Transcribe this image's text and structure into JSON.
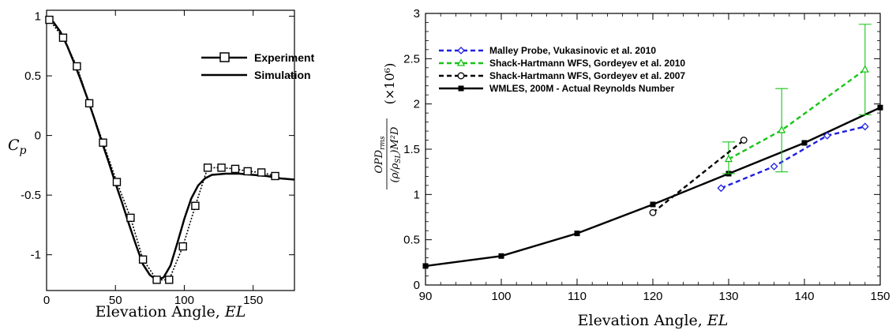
{
  "chart_data": [
    {
      "type": "line",
      "xlabel_text": "Elevation Angle, ",
      "xlabel_var": "EL",
      "ylabel_main": "C",
      "ylabel_sub": "p",
      "xlim": [
        0,
        180
      ],
      "ylim": [
        -1.3,
        1.05
      ],
      "xticks": [
        0,
        50,
        100,
        150
      ],
      "yticks": [
        1,
        0.5,
        0,
        -0.5,
        -1
      ],
      "grid": false,
      "legend_position": "top-right",
      "series": [
        {
          "name": "Experiment",
          "style": "dotted-square",
          "x": [
            2,
            12,
            22,
            31,
            41,
            51,
            61,
            70,
            80,
            89,
            99,
            108,
            117,
            127,
            137,
            146,
            156,
            166
          ],
          "y": [
            0.97,
            0.82,
            0.58,
            0.27,
            -0.06,
            -0.39,
            -0.69,
            -1.04,
            -1.21,
            -1.21,
            -0.93,
            -0.59,
            -0.27,
            -0.27,
            -0.28,
            -0.3,
            -0.31,
            -0.34
          ]
        },
        {
          "name": "Simulation",
          "style": "solid",
          "x": [
            0,
            5,
            10,
            15,
            20,
            25,
            30,
            35,
            40,
            45,
            50,
            55,
            60,
            65,
            70,
            75,
            80,
            85,
            90,
            95,
            100,
            105,
            110,
            115,
            120,
            130,
            140,
            150,
            160,
            170,
            180
          ],
          "y": [
            0.97,
            0.95,
            0.87,
            0.75,
            0.61,
            0.46,
            0.3,
            0.13,
            -0.05,
            -0.22,
            -0.4,
            -0.57,
            -0.75,
            -0.92,
            -1.08,
            -1.17,
            -1.21,
            -1.19,
            -1.09,
            -0.9,
            -0.7,
            -0.53,
            -0.42,
            -0.36,
            -0.33,
            -0.32,
            -0.32,
            -0.33,
            -0.34,
            -0.36,
            -0.37
          ]
        }
      ]
    },
    {
      "type": "line",
      "xlabel_text": "Elevation Angle, ",
      "xlabel_var": "EL",
      "ylabel_num": "OPD",
      "ylabel_num_sub": "rms",
      "ylabel_den": "(ρ/ρ",
      "ylabel_den_sub": "SL",
      "ylabel_den_tail": ")M²D",
      "ylabel_scale": "(×10⁶)",
      "xlim": [
        90,
        150
      ],
      "ylim": [
        0,
        3
      ],
      "xticks": [
        90,
        100,
        110,
        120,
        130,
        140,
        150
      ],
      "yticks": [
        0,
        0.5,
        1,
        1.5,
        2,
        2.5,
        3
      ],
      "grid": false,
      "legend_position": "top-left",
      "series": [
        {
          "name": "Malley Probe, Vukasinovic et al. 2010",
          "color": "#1f1fe0",
          "marker": "diamond",
          "x": [
            129,
            136,
            143,
            148
          ],
          "y": [
            1.07,
            1.31,
            1.65,
            1.75
          ]
        },
        {
          "name": "Shack-Hartmann WFS, Gordeyev et al. 2010",
          "color": "#18c418",
          "marker": "triangle",
          "x": [
            130,
            137,
            148
          ],
          "y": [
            1.39,
            1.71,
            2.38
          ],
          "err_low": [
            1.23,
            1.25,
            1.88
          ],
          "err_high": [
            1.58,
            2.17,
            2.88
          ]
        },
        {
          "name": "Shack-Hartmann WFS, Gordeyev et al. 2007",
          "color": "#000000",
          "marker": "circle",
          "x": [
            120,
            132
          ],
          "y": [
            0.8,
            1.6
          ]
        },
        {
          "name": "WMLES, 200M - Actual Reynolds Number",
          "color": "#000000",
          "marker": "square",
          "x": [
            90,
            100,
            110,
            120,
            130,
            140,
            150
          ],
          "y": [
            0.21,
            0.32,
            0.57,
            0.89,
            1.23,
            1.57,
            1.96
          ]
        }
      ]
    }
  ]
}
